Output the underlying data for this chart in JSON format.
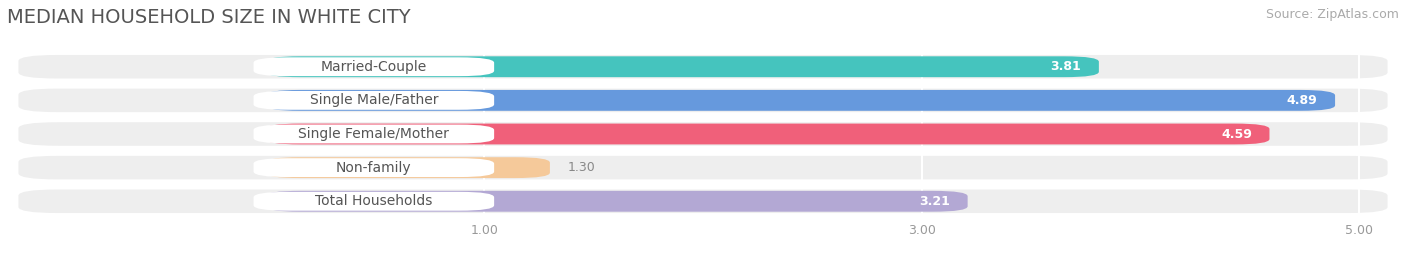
{
  "title": "MEDIAN HOUSEHOLD SIZE IN WHITE CITY",
  "source": "Source: ZipAtlas.com",
  "categories": [
    "Married-Couple",
    "Single Male/Father",
    "Single Female/Mother",
    "Non-family",
    "Total Households"
  ],
  "values": [
    3.81,
    4.89,
    4.59,
    1.3,
    3.21
  ],
  "bar_colors": [
    "#45c4be",
    "#6699dd",
    "#f0607a",
    "#f5c99a",
    "#b3a8d4"
  ],
  "label_text_color": "#555555",
  "value_color_inside": "#ffffff",
  "value_color_outside": "#888888",
  "xlim_min": 0,
  "xlim_max": 5.25,
  "xticks": [
    1.0,
    3.0,
    5.0
  ],
  "bg_color": "#ffffff",
  "row_bg_color": "#eeeeee",
  "grid_color": "#dddddd",
  "title_fontsize": 14,
  "source_fontsize": 9,
  "label_fontsize": 10,
  "value_fontsize": 9,
  "bar_height": 0.62
}
